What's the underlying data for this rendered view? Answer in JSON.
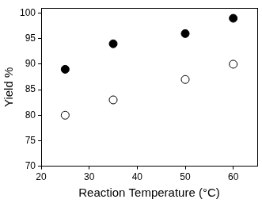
{
  "chart_data": {
    "type": "scatter",
    "x_label": "Reaction Temperature (°C)",
    "y_label": "Yield %",
    "series": [
      {
        "color": "#000000",
        "marker": "filled_circle",
        "x": [
          25,
          35,
          50,
          60
        ],
        "values": [
          89,
          94,
          96,
          99
        ]
      },
      {
        "color": "#000000",
        "marker": "open_circle",
        "x": [
          25,
          35,
          50,
          60
        ],
        "values": [
          80,
          83,
          87,
          90
        ]
      }
    ],
    "xlim": [
      20,
      65
    ],
    "xticks": [
      20,
      30,
      40,
      50,
      60
    ],
    "ylim": [
      70,
      101
    ],
    "yticks": [
      70,
      75,
      80,
      85,
      90,
      95,
      100
    ],
    "grid": false
  }
}
